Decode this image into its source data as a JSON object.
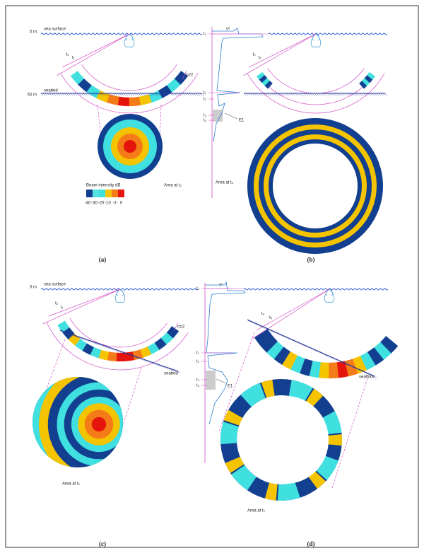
{
  "panels": [
    {
      "label": "(a)",
      "depth_top": "0 m",
      "surface": "sea surface",
      "times": [
        "t₀",
        "t₁"
      ],
      "pulse": "cτ/2",
      "bottom": "seabed",
      "depth_bottom": "50 m",
      "legend": {
        "title": "Beam intensity dB",
        "ticks": [
          "-40",
          "-30",
          "-20",
          "-10",
          "-3",
          "0"
        ]
      },
      "area": "Area at t₂"
    },
    {
      "label": "(b)",
      "signal": "v²",
      "times": [
        "t₀",
        "t₁",
        "t₂",
        "t₃",
        "t₄"
      ],
      "echo": "E1",
      "beam_times": [
        "t₄",
        "t₅"
      ],
      "area": "Area at t₄"
    },
    {
      "label": "(c)",
      "depth_top": "0 m",
      "surface": "sea surface",
      "times": [
        "t₀",
        "t₁"
      ],
      "pulse": "cτ/2",
      "bottom": "seabed",
      "area": "Area at t₂"
    },
    {
      "label": "(d)",
      "signal": "v²",
      "times": [
        "t₀",
        "t₁",
        "t₂",
        "t₃",
        "t₄"
      ],
      "echo": "E1",
      "beam_times": [
        "t₄",
        "t₅"
      ],
      "bottom": "seafloor",
      "area": "Area at tₙ"
    }
  ]
}
